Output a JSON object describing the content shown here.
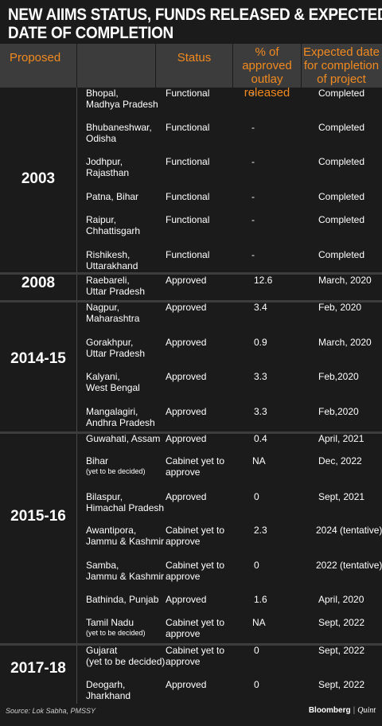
{
  "title": {
    "line1": "NEW AIIMS STATUS, FUNDS RELEASED & EXPECTED",
    "line2": "DATE OF COMPLETION"
  },
  "header": {
    "proposed": "Proposed",
    "status": "Status",
    "pct": "% of approved outlay released",
    "date": "Expected date for completion of project"
  },
  "groups": [
    {
      "year": "2003",
      "rows": [
        {
          "loc1": "Bhopal,",
          "loc2": "Madhya Pradesh",
          "status1": "Functional",
          "status2": "",
          "pct": "-",
          "date": "Completed"
        },
        {
          "loc1": "Bhubaneshwar,",
          "loc2": "Odisha",
          "status1": "Functional",
          "status2": "",
          "pct": "-",
          "date": "Completed"
        },
        {
          "loc1": "Jodhpur,",
          "loc2": "Rajasthan",
          "status1": "Functional",
          "status2": "",
          "pct": "-",
          "date": "Completed"
        },
        {
          "loc1": "Patna, Bihar",
          "loc2": "",
          "status1": "Functional",
          "status2": "",
          "pct": "-",
          "date": "Completed"
        },
        {
          "loc1": "Raipur,",
          "loc2": "Chhattisgarh",
          "status1": "Functional",
          "status2": "",
          "pct": "-",
          "date": "Completed"
        },
        {
          "loc1": "Rishikesh,",
          "loc2": "Uttarakhand",
          "status1": "Functional",
          "status2": "",
          "pct": "-",
          "date": "Completed"
        }
      ]
    },
    {
      "year": "2008",
      "rows": [
        {
          "loc1": "Raebareli,",
          "loc2": "Uttar Pradesh",
          "status1": "Approved",
          "status2": "",
          "pct": "12.6",
          "date": "March, 2020"
        }
      ]
    },
    {
      "year": "2014-15",
      "rows": [
        {
          "loc1": "Nagpur,",
          "loc2": "Maharashtra",
          "status1": "Approved",
          "status2": "",
          "pct": "3.4",
          "date": "Feb, 2020"
        },
        {
          "loc1": "Gorakhpur,",
          "loc2": "Uttar Pradesh",
          "status1": "Approved",
          "status2": "",
          "pct": "0.9",
          "date": "March, 2020"
        },
        {
          "loc1": "Kalyani,",
          "loc2": "West Bengal",
          "status1": "Approved",
          "status2": "",
          "pct": "3.3",
          "date": "Feb,2020"
        },
        {
          "loc1": "Mangalagiri,",
          "loc2": "Andhra Pradesh",
          "status1": "Approved",
          "status2": "",
          "pct": "3.3",
          "date": "Feb,2020"
        }
      ]
    },
    {
      "year": "2015-16",
      "rows": [
        {
          "loc1": "Guwahati, Assam",
          "loc2": "",
          "status1": "Approved",
          "status2": "",
          "pct": "0.4",
          "date": "April, 2021"
        },
        {
          "loc1": "Bihar",
          "sub": "(yet to be decided)",
          "status1": "Cabinet yet to",
          "status2": "approve",
          "pct": "NA",
          "date": "Dec, 2022"
        },
        {
          "loc1": "Bilaspur,",
          "loc2": "Himachal Pradesh",
          "status1": "Approved",
          "status2": "",
          "pct": "0",
          "date": "Sept, 2021"
        },
        {
          "loc1": "Awantipora,",
          "loc2": "Jammu & Kashmir",
          "status1": "Cabinet yet to",
          "status2": "approve",
          "pct": "2.3",
          "date": "2024 (tentative)"
        },
        {
          "loc1": "Samba,",
          "loc2": "Jammu & Kashmir",
          "status1": "Cabinet yet to",
          "status2": "approve",
          "pct": "0",
          "date": "2022 (tentative)"
        },
        {
          "loc1": "Bathinda, Punjab",
          "loc2": "",
          "status1": "Approved",
          "status2": "",
          "pct": "1.6",
          "date": "April, 2020"
        },
        {
          "loc1": "Tamil Nadu",
          "sub": "(yet to be decided)",
          "status1": "Cabinet yet to",
          "status2": "approve",
          "pct": "NA",
          "date": "Sept, 2022"
        }
      ]
    },
    {
      "year": "2017-18",
      "rows": [
        {
          "loc1": "Gujarat",
          "loc2": "(yet to be decided)",
          "status1": "Cabinet yet to",
          "status2": "approve",
          "pct": "0",
          "date": "Sept, 2022"
        },
        {
          "loc1": "Deogarh,",
          "loc2": "Jharkhand",
          "status1": "Approved",
          "status2": "",
          "pct": "0",
          "date": "Sept, 2022"
        }
      ]
    }
  ],
  "footer": {
    "source": "Source: Lok Sabha, PMSSY",
    "brand1": "Bloomberg",
    "brand_sep": "|",
    "brand2": "Quint"
  },
  "colors": {
    "accent": "#f28a1f",
    "header_bg": "#3c3c3c",
    "page_bg": "#1b1b1b"
  }
}
